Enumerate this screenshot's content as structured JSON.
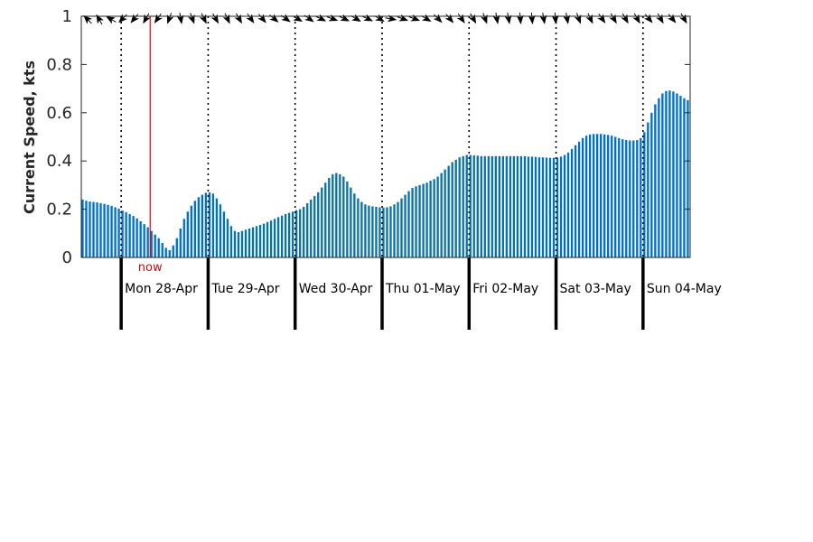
{
  "chart_data": {
    "type": "bar",
    "title": "",
    "xlabel": "",
    "ylabel": "Current Speed, kts",
    "ylim": [
      0,
      1
    ],
    "yticks": [
      "0",
      "0.2",
      "0.4",
      "0.6",
      "0.8",
      "1"
    ],
    "grid": false,
    "bar_color": "#0072bd",
    "now_color": "#e8000b",
    "now_label": "now",
    "now_hour": 19,
    "hours_per_bar": 1,
    "start_hour": 0,
    "day_boundaries_hour": [
      11,
      35,
      59,
      83,
      107,
      131,
      155
    ],
    "day_labels": [
      "Mon 28-Apr",
      "Tue 29-Apr",
      "Wed 30-Apr",
      "Thu 01-May",
      "Fri 02-May",
      "Sat 03-May",
      "Sun 04-May"
    ],
    "values": [
      0.24,
      0.235,
      0.232,
      0.23,
      0.228,
      0.225,
      0.222,
      0.218,
      0.214,
      0.208,
      0.202,
      0.195,
      0.188,
      0.18,
      0.172,
      0.162,
      0.15,
      0.138,
      0.125,
      0.11,
      0.095,
      0.08,
      0.06,
      0.04,
      0.03,
      0.05,
      0.08,
      0.12,
      0.16,
      0.19,
      0.215,
      0.235,
      0.25,
      0.26,
      0.268,
      0.27,
      0.265,
      0.245,
      0.22,
      0.19,
      0.16,
      0.13,
      0.11,
      0.105,
      0.11,
      0.115,
      0.12,
      0.125,
      0.13,
      0.135,
      0.14,
      0.147,
      0.153,
      0.16,
      0.167,
      0.173,
      0.18,
      0.185,
      0.19,
      0.196,
      0.2,
      0.21,
      0.225,
      0.24,
      0.255,
      0.27,
      0.29,
      0.31,
      0.33,
      0.345,
      0.35,
      0.345,
      0.335,
      0.315,
      0.29,
      0.265,
      0.245,
      0.23,
      0.22,
      0.215,
      0.212,
      0.21,
      0.208,
      0.207,
      0.208,
      0.212,
      0.22,
      0.23,
      0.245,
      0.26,
      0.275,
      0.288,
      0.295,
      0.3,
      0.305,
      0.31,
      0.318,
      0.325,
      0.335,
      0.35,
      0.365,
      0.38,
      0.395,
      0.405,
      0.415,
      0.42,
      0.425,
      0.425,
      0.423,
      0.422,
      0.42,
      0.42,
      0.42,
      0.42,
      0.42,
      0.42,
      0.42,
      0.42,
      0.42,
      0.42,
      0.42,
      0.42,
      0.42,
      0.418,
      0.418,
      0.417,
      0.415,
      0.415,
      0.414,
      0.413,
      0.413,
      0.414,
      0.418,
      0.425,
      0.435,
      0.45,
      0.465,
      0.48,
      0.495,
      0.505,
      0.51,
      0.512,
      0.512,
      0.512,
      0.51,
      0.508,
      0.505,
      0.5,
      0.495,
      0.49,
      0.487,
      0.485,
      0.485,
      0.487,
      0.495,
      0.52,
      0.56,
      0.6,
      0.635,
      0.66,
      0.68,
      0.69,
      0.692,
      0.688,
      0.68,
      0.67,
      0.66,
      0.652
    ],
    "direction_arrows_deg": [
      315,
      330,
      300,
      225,
      220,
      210,
      215,
      200,
      170,
      160,
      155,
      150,
      155,
      150,
      145,
      140,
      130,
      125,
      120,
      125,
      115,
      110,
      115,
      120,
      115,
      120,
      100,
      110,
      110,
      120,
      135,
      140,
      145,
      150,
      160,
      170,
      170,
      175,
      175,
      170,
      175,
      170,
      160,
      155,
      145,
      150,
      150,
      150,
      140,
      150,
      140,
      150
    ]
  }
}
